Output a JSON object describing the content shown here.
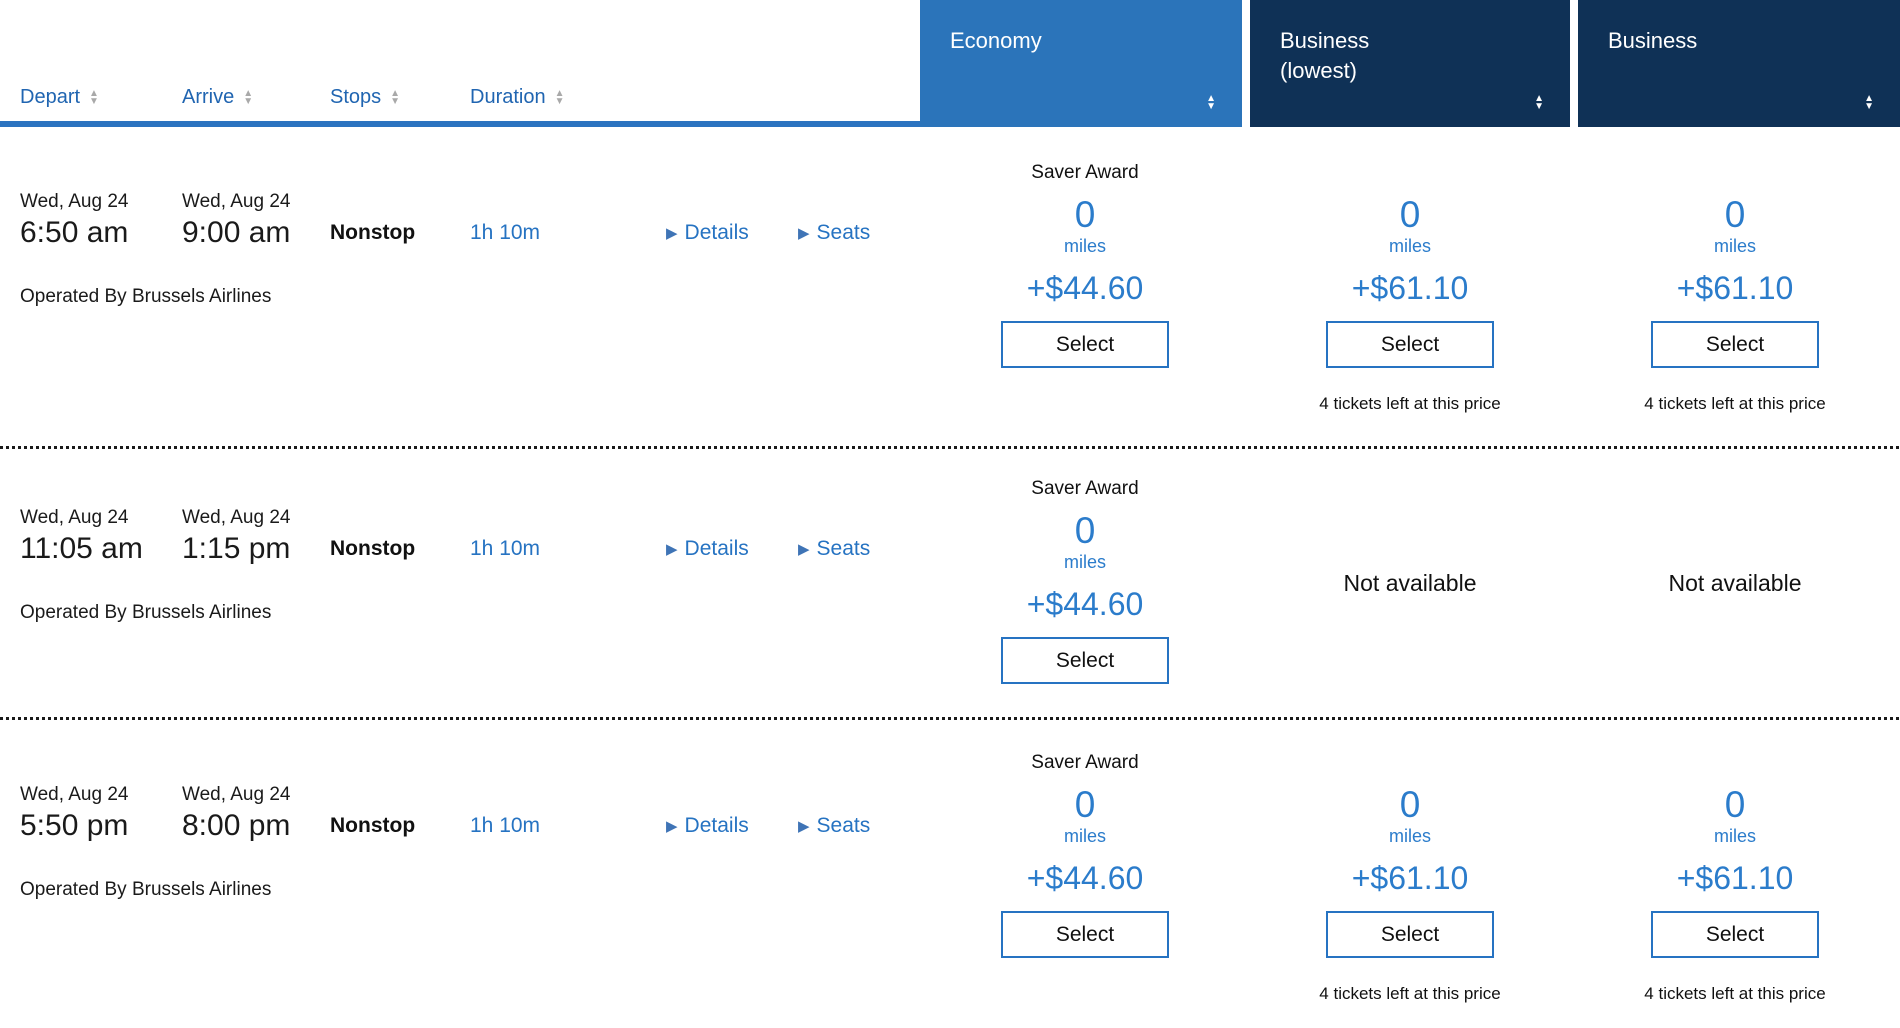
{
  "colors": {
    "economy_header_bg": "#2b74ba",
    "business_header_bg": "#0f3156",
    "header_underline": "#2b73c0",
    "link_blue": "#2673c2",
    "price_blue": "#2b7ccb",
    "sort_arrow_gray": "#a9a9a9"
  },
  "header": {
    "sort_columns": [
      {
        "label": "Depart"
      },
      {
        "label": "Arrive"
      },
      {
        "label": "Stops"
      },
      {
        "label": "Duration"
      }
    ],
    "fare_columns": [
      {
        "label": "Economy",
        "sublabel": ""
      },
      {
        "label": "Business",
        "sublabel": "(lowest)"
      },
      {
        "label": "Business",
        "sublabel": ""
      }
    ]
  },
  "labels": {
    "details": "Details",
    "seats": "Seats"
  },
  "rows": [
    {
      "depart_date": "Wed, Aug 24",
      "depart_time": "6:50 am",
      "arrive_date": "Wed, Aug 24",
      "arrive_time": "9:00 am",
      "stops": "Nonstop",
      "duration": "1h 10m",
      "operated_by": "Operated By Brussels Airlines",
      "fares": [
        {
          "cabin": "Economy",
          "award_label": "Saver Award",
          "miles": "0",
          "miles_unit": "miles",
          "price": "+$44.60",
          "button": "Select"
        },
        {
          "cabin": "Business (lowest)",
          "miles": "0",
          "miles_unit": "miles",
          "price": "+$61.10",
          "button": "Select",
          "availability_note": "4 tickets left at this price"
        },
        {
          "cabin": "Business",
          "miles": "0",
          "miles_unit": "miles",
          "price": "+$61.10",
          "button": "Select",
          "availability_note": "4 tickets left at this price"
        }
      ]
    },
    {
      "depart_date": "Wed, Aug 24",
      "depart_time": "11:05 am",
      "arrive_date": "Wed, Aug 24",
      "arrive_time": "1:15 pm",
      "stops": "Nonstop",
      "duration": "1h 10m",
      "operated_by": "Operated By Brussels Airlines",
      "fares": [
        {
          "cabin": "Economy",
          "award_label": "Saver Award",
          "miles": "0",
          "miles_unit": "miles",
          "price": "+$44.60",
          "button": "Select"
        },
        {
          "cabin": "Business (lowest)",
          "status": "Not available"
        },
        {
          "cabin": "Business",
          "status": "Not available"
        }
      ]
    },
    {
      "depart_date": "Wed, Aug 24",
      "depart_time": "5:50 pm",
      "arrive_date": "Wed, Aug 24",
      "arrive_time": "8:00 pm",
      "stops": "Nonstop",
      "duration": "1h 10m",
      "operated_by": "Operated By Brussels Airlines",
      "fares": [
        {
          "cabin": "Economy",
          "award_label": "Saver Award",
          "miles": "0",
          "miles_unit": "miles",
          "price": "+$44.60",
          "button": "Select"
        },
        {
          "cabin": "Business (lowest)",
          "miles": "0",
          "miles_unit": "miles",
          "price": "+$61.10",
          "button": "Select",
          "availability_note": "4 tickets left at this price"
        },
        {
          "cabin": "Business",
          "miles": "0",
          "miles_unit": "miles",
          "price": "+$61.10",
          "button": "Select",
          "availability_note": "4 tickets left at this price"
        }
      ]
    }
  ]
}
